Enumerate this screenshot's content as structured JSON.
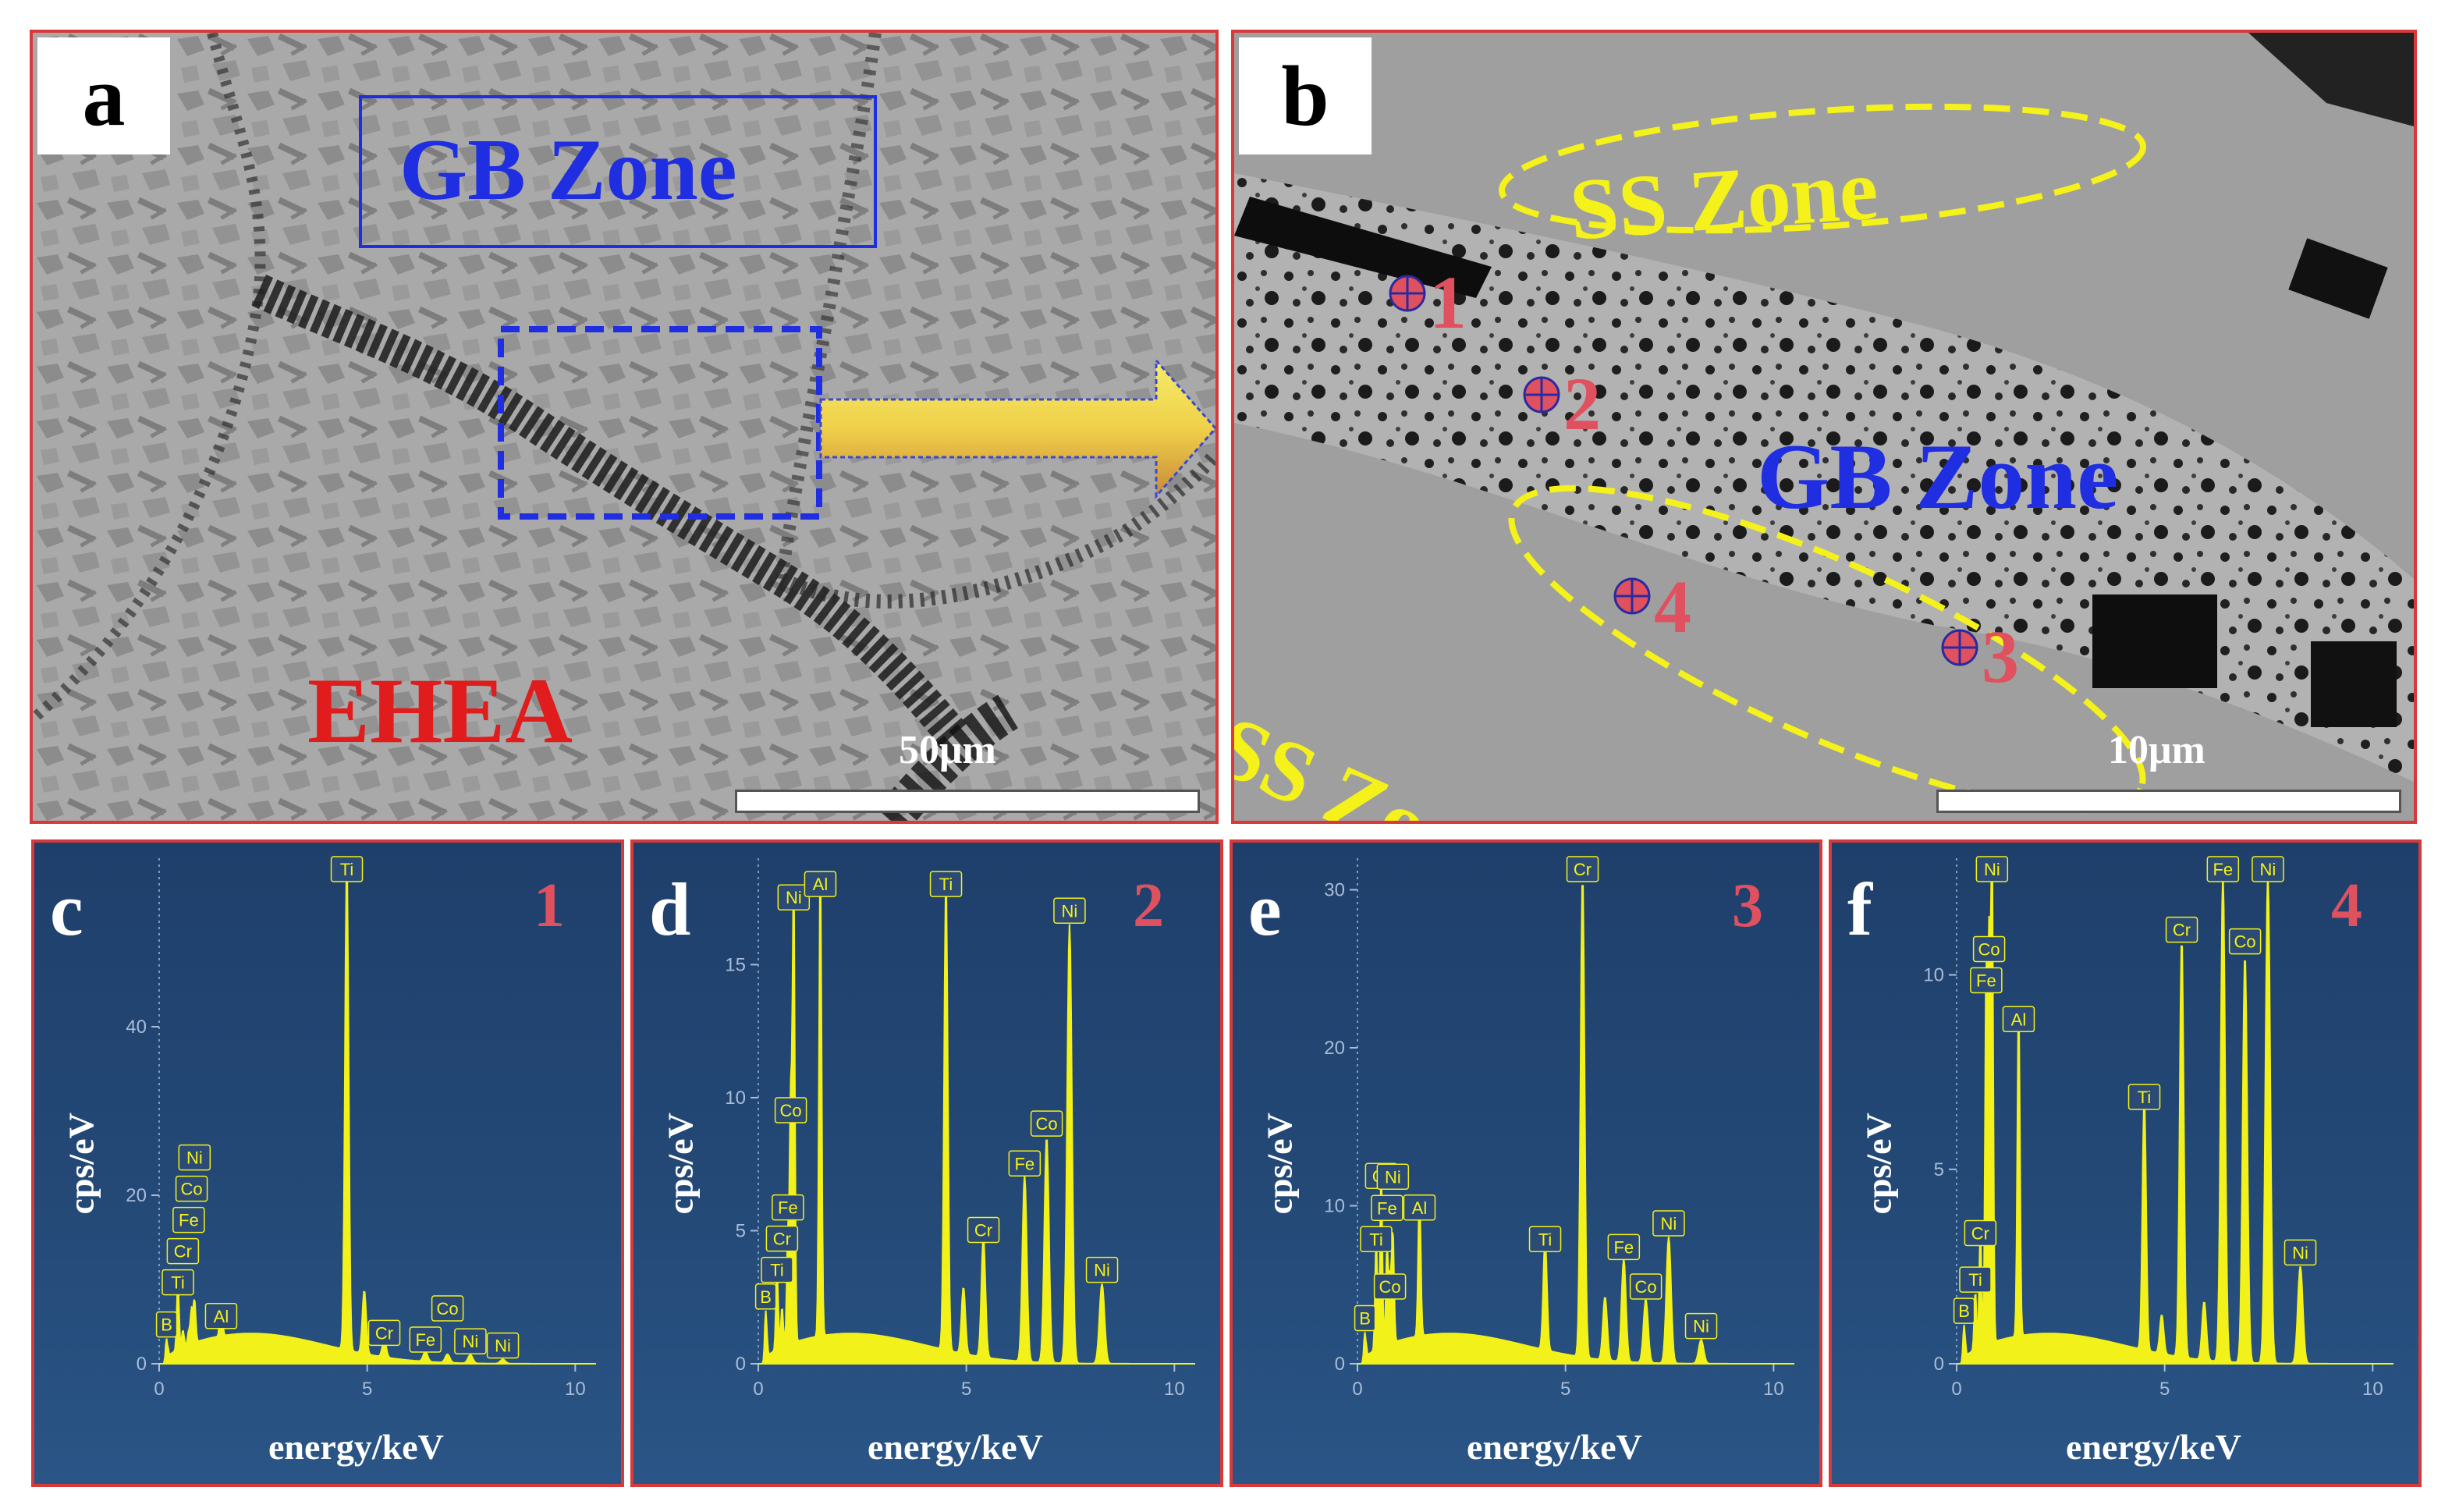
{
  "panel_a": {
    "letter": "a",
    "box_label": "GB Zone",
    "material_label": "EHEA",
    "scale": "50μm"
  },
  "panel_b": {
    "letter": "b",
    "ss_zone_top": "SS Zone",
    "ss_zone_bottom": "SS Zone",
    "gb_zone": "GB Zone",
    "points": [
      "1",
      "2",
      "3",
      "4"
    ],
    "scale": "10μm"
  },
  "colors": {
    "border": "#d83a3a",
    "gb_blue": "#1e2ee0",
    "ss_yellow": "#f4f21a",
    "ehea_red": "#e01c1c",
    "spectrum": "#f2f21a",
    "panel_bg": "#224470"
  },
  "chart_data": [
    {
      "type": "line",
      "panel": "c",
      "point": "1",
      "xlabel": "energy/keV",
      "ylabel": "cps/eV",
      "xlim": [
        0,
        10.5
      ],
      "ylim": [
        0,
        60
      ],
      "xticks": [
        "0",
        "5",
        "10"
      ],
      "yticks": [
        "0",
        "20",
        "40"
      ],
      "ytick_values": [
        0,
        20,
        40
      ],
      "peaks": [
        {
          "x": 0.18,
          "y": 3.0,
          "label": "B"
        },
        {
          "x": 0.45,
          "y": 8.0,
          "label": "Ti"
        },
        {
          "x": 0.57,
          "y": 2.0,
          "label": "Cr"
        },
        {
          "x": 0.71,
          "y": 1.5,
          "label": "Fe"
        },
        {
          "x": 0.78,
          "y": 4.0,
          "label": "Co"
        },
        {
          "x": 0.85,
          "y": 5.0,
          "label": "Ni"
        },
        {
          "x": 1.49,
          "y": 4.0,
          "label": "Al"
        },
        {
          "x": 4.51,
          "y": 58.0,
          "label": "Ti"
        },
        {
          "x": 4.93,
          "y": 7.5,
          "label": ""
        },
        {
          "x": 5.41,
          "y": 2.0,
          "label": "Cr"
        },
        {
          "x": 6.4,
          "y": 1.2,
          "label": "Fe"
        },
        {
          "x": 6.93,
          "y": 1.0,
          "label": "Co"
        },
        {
          "x": 7.48,
          "y": 1.0,
          "label": "Ni"
        },
        {
          "x": 8.26,
          "y": 0.5,
          "label": "Ni"
        }
      ]
    },
    {
      "type": "line",
      "panel": "d",
      "point": "2",
      "xlabel": "energy/keV",
      "ylabel": "cps/eV",
      "xlim": [
        0,
        10.5
      ],
      "ylim": [
        0,
        19
      ],
      "xticks": [
        "0",
        "5",
        "10"
      ],
      "yticks": [
        "0",
        "5",
        "10",
        "15"
      ],
      "ytick_values": [
        0,
        5,
        10,
        15
      ],
      "peaks": [
        {
          "x": 0.18,
          "y": 2.0,
          "label": "B"
        },
        {
          "x": 0.45,
          "y": 3.0,
          "label": "Ti"
        },
        {
          "x": 0.57,
          "y": 1.5,
          "label": "Cr"
        },
        {
          "x": 0.71,
          "y": 4.0,
          "label": "Fe"
        },
        {
          "x": 0.78,
          "y": 9.0,
          "label": "Co"
        },
        {
          "x": 0.85,
          "y": 17.0,
          "label": "Ni"
        },
        {
          "x": 1.49,
          "y": 17.5,
          "label": "Al"
        },
        {
          "x": 4.51,
          "y": 17.5,
          "label": "Ti"
        },
        {
          "x": 4.93,
          "y": 2.5,
          "label": ""
        },
        {
          "x": 5.41,
          "y": 4.5,
          "label": "Cr"
        },
        {
          "x": 6.4,
          "y": 7.0,
          "label": "Fe"
        },
        {
          "x": 6.93,
          "y": 8.5,
          "label": "Co"
        },
        {
          "x": 7.48,
          "y": 16.5,
          "label": "Ni"
        },
        {
          "x": 8.26,
          "y": 3.0,
          "label": "Ni"
        }
      ]
    },
    {
      "type": "line",
      "panel": "e",
      "point": "3",
      "xlabel": "energy/keV",
      "ylabel": "cps/eV",
      "xlim": [
        0,
        10.5
      ],
      "ylim": [
        0,
        32
      ],
      "xticks": [
        "0",
        "5",
        "10"
      ],
      "yticks": [
        "0",
        "10",
        "20",
        "30"
      ],
      "ytick_values": [
        0,
        10,
        20,
        30
      ],
      "peaks": [
        {
          "x": 0.18,
          "y": 2.0,
          "label": "B"
        },
        {
          "x": 0.45,
          "y": 7.0,
          "label": "Ti"
        },
        {
          "x": 0.57,
          "y": 11.0,
          "label": "Cr"
        },
        {
          "x": 0.71,
          "y": 6.0,
          "label": "Fe"
        },
        {
          "x": 0.78,
          "y": 4.0,
          "label": "Co"
        },
        {
          "x": 0.85,
          "y": 7.0,
          "label": "Ni"
        },
        {
          "x": 1.49,
          "y": 9.0,
          "label": "Al"
        },
        {
          "x": 4.51,
          "y": 7.0,
          "label": "Ti"
        },
        {
          "x": 5.41,
          "y": 30.5,
          "label": "Cr"
        },
        {
          "x": 5.95,
          "y": 4.0,
          "label": ""
        },
        {
          "x": 6.4,
          "y": 6.5,
          "label": "Fe"
        },
        {
          "x": 6.93,
          "y": 4.0,
          "label": "Co"
        },
        {
          "x": 7.48,
          "y": 8.0,
          "label": "Ni"
        },
        {
          "x": 8.26,
          "y": 1.5,
          "label": "Ni"
        }
      ]
    },
    {
      "type": "line",
      "panel": "f",
      "point": "4",
      "xlabel": "energy/keV",
      "ylabel": "cps/eV",
      "xlim": [
        0,
        10.5
      ],
      "ylim": [
        0,
        13
      ],
      "xticks": [
        "0",
        "5",
        "10"
      ],
      "yticks": [
        "0",
        "5",
        "10"
      ],
      "ytick_values": [
        0,
        5,
        10
      ],
      "peaks": [
        {
          "x": 0.18,
          "y": 1.0,
          "label": "B"
        },
        {
          "x": 0.45,
          "y": 1.5,
          "label": "Ti"
        },
        {
          "x": 0.57,
          "y": 3.0,
          "label": "Cr"
        },
        {
          "x": 0.71,
          "y": 9.5,
          "label": "Fe"
        },
        {
          "x": 0.78,
          "y": 10.0,
          "label": "Co"
        },
        {
          "x": 0.85,
          "y": 12.6,
          "label": "Ni"
        },
        {
          "x": 1.49,
          "y": 8.5,
          "label": "Al"
        },
        {
          "x": 4.51,
          "y": 6.5,
          "label": "Ti"
        },
        {
          "x": 4.93,
          "y": 1.0,
          "label": ""
        },
        {
          "x": 5.41,
          "y": 10.8,
          "label": "Cr"
        },
        {
          "x": 5.95,
          "y": 1.5,
          "label": ""
        },
        {
          "x": 6.4,
          "y": 12.6,
          "label": "Fe"
        },
        {
          "x": 6.93,
          "y": 10.5,
          "label": "Co"
        },
        {
          "x": 7.48,
          "y": 12.6,
          "label": "Ni"
        },
        {
          "x": 8.26,
          "y": 2.5,
          "label": "Ni"
        }
      ]
    }
  ]
}
